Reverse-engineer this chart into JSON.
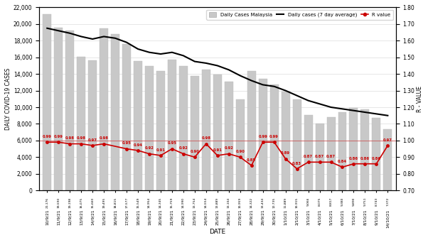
{
  "dates": [
    "10/9/21",
    "11/9/21",
    "12/9/21",
    "13/9/21",
    "14/9/21",
    "15/9/21",
    "16/9/21",
    "17/9/21",
    "18/9/21",
    "19/9/21",
    "20/9/21",
    "21/9/21",
    "22/9/21",
    "23/9/21",
    "24/9/21",
    "25/9/21",
    "26/9/21",
    "27/9/21",
    "28/9/21",
    "29/9/21",
    "30/9/21",
    "1/10/21",
    "2/10/21",
    "3/10/21",
    "4/10/21",
    "5/10/21",
    "6/10/21",
    "7/10/21",
    "8/10/21",
    "9/10/21",
    "14/10/21"
  ],
  "bar_values": [
    21176,
    19590,
    19198,
    16075,
    15660,
    19495,
    18815,
    17577,
    15549,
    14954,
    14345,
    15759,
    14990,
    13754,
    14554,
    13889,
    13104,
    10959,
    14322,
    13434,
    12735,
    11889,
    10915,
    9066,
    8075,
    8817,
    9380,
    9890,
    9751,
    8743,
    7372
  ],
  "bar_labels": [
    "21,176",
    "19,590",
    "19,198",
    "16,075",
    "15,660",
    "19,495",
    "18,815",
    "17,577",
    "15,549",
    "14,954",
    "14,345",
    "15,759",
    "14,990",
    "13,754",
    "14,554",
    "13,889",
    "13,104",
    "10,959",
    "14,322",
    "13,434",
    "12,735",
    "11,889",
    "10,915",
    "9,066",
    "8,075",
    "8,817",
    "9,380",
    "9,890",
    "9,751",
    "8,743",
    "7,372"
  ],
  "avg_line": [
    19500,
    19200,
    18900,
    18500,
    18200,
    18500,
    18300,
    17800,
    17000,
    16600,
    16400,
    16600,
    16200,
    15500,
    15300,
    15000,
    14500,
    13800,
    13200,
    12700,
    12500,
    12000,
    11400,
    10800,
    10400,
    10000,
    9800,
    9600,
    9400,
    9200,
    9000
  ],
  "r_values": [
    0.99,
    0.99,
    0.98,
    0.98,
    0.97,
    0.98,
    null,
    0.95,
    0.94,
    0.92,
    0.91,
    0.95,
    0.92,
    0.9,
    0.98,
    0.91,
    0.92,
    0.9,
    0.85,
    0.99,
    0.99,
    0.89,
    0.83,
    0.87,
    0.87,
    0.87,
    0.84,
    0.86,
    0.86,
    0.86,
    0.97
  ],
  "r_labels": [
    "0.99",
    "0.99",
    "0.98",
    "0.98",
    "0.97",
    "0.98",
    "",
    "0.95",
    "0.94",
    "0.92",
    "0.91",
    "0.95",
    "0.92",
    "0.90",
    "0.98",
    "0.91",
    "0.92",
    "0.90",
    "0.85",
    "0.99",
    "0.99",
    "0.89",
    "0.83",
    "0.87",
    "0.87",
    "0.87",
    "0.84",
    "0.86",
    "0.86",
    "0.86",
    "0.97"
  ],
  "ylim_left": [
    0,
    22000
  ],
  "ylim_right": [
    0.7,
    1.8
  ],
  "yticks_left": [
    0,
    2000,
    4000,
    6000,
    8000,
    10000,
    12000,
    14000,
    16000,
    18000,
    20000,
    22000
  ],
  "yticks_right": [
    0.7,
    0.8,
    0.9,
    1.0,
    1.1,
    1.2,
    1.3,
    1.4,
    1.5,
    1.6,
    1.7,
    1.8
  ],
  "ylabel_left": "DAILY COVID-19 CASES",
  "ylabel_right": "R - VALUE",
  "xlabel": "DATE",
  "bar_color": "#c8c8c8",
  "avg_line_color": "#000000",
  "r_line_color": "#cc0000",
  "r_hline_color": "#cc3333",
  "r_hline_value": 1.0,
  "bg_color": "#ffffff"
}
